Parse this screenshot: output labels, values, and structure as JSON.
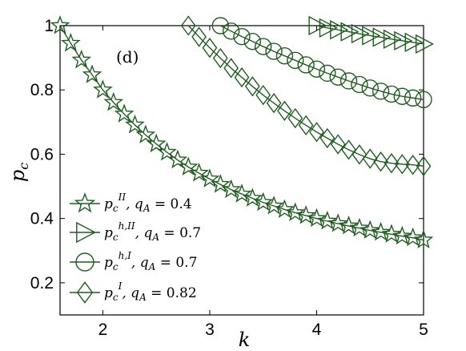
{
  "chart_data": {
    "type": "line",
    "panel_label": "(d)",
    "xlabel": "k",
    "ylabel": "p_c",
    "xlim": [
      1.6,
      5.0
    ],
    "ylim": [
      0.1,
      1.0
    ],
    "xticks": [
      2,
      3,
      4,
      5
    ],
    "yticks": [
      0.2,
      0.4,
      0.6,
      0.8,
      1.0
    ],
    "ytick_labels": [
      "0.2",
      "0.4",
      "0.6",
      "0.8",
      "1"
    ],
    "grid": false,
    "legend_position": "lower-left",
    "color": "#1f5c1f",
    "series": [
      {
        "name": "p_c^{II}, q_A = 0.4",
        "marker": "star",
        "x": [
          1.6,
          1.7,
          1.8,
          1.9,
          2.0,
          2.1,
          2.2,
          2.3,
          2.4,
          2.5,
          2.6,
          2.7,
          2.8,
          2.9,
          3.0,
          3.1,
          3.2,
          3.3,
          3.4,
          3.5,
          3.6,
          3.7,
          3.8,
          3.9,
          4.0,
          4.1,
          4.2,
          4.3,
          4.4,
          4.5,
          4.6,
          4.7,
          4.8,
          4.9,
          5.0
        ],
        "values": [
          1.0,
          0.945,
          0.893,
          0.847,
          0.8,
          0.761,
          0.725,
          0.691,
          0.66,
          0.632,
          0.606,
          0.582,
          0.56,
          0.541,
          0.523,
          0.506,
          0.49,
          0.476,
          0.463,
          0.45,
          0.439,
          0.428,
          0.418,
          0.409,
          0.4,
          0.392,
          0.384,
          0.377,
          0.37,
          0.363,
          0.357,
          0.351,
          0.345,
          0.34,
          0.333
        ]
      },
      {
        "name": "p_c^{h,II}, q_A = 0.7",
        "marker": "triangle-right",
        "x": [
          4.0,
          4.1,
          4.2,
          4.3,
          4.4,
          4.5,
          4.6,
          4.7,
          4.8,
          4.9,
          5.0
        ],
        "values": [
          1.0,
          0.993,
          0.987,
          0.981,
          0.975,
          0.969,
          0.964,
          0.958,
          0.953,
          0.948,
          0.943
        ]
      },
      {
        "name": "p_c^{h,I}, q_A = 0.7",
        "marker": "circle",
        "x": [
          3.1,
          3.2,
          3.3,
          3.4,
          3.5,
          3.6,
          3.7,
          3.8,
          3.9,
          4.0,
          4.1,
          4.2,
          4.3,
          4.4,
          4.5,
          4.6,
          4.7,
          4.8,
          4.9,
          5.0
        ],
        "values": [
          1.0,
          0.983,
          0.966,
          0.951,
          0.935,
          0.92,
          0.906,
          0.892,
          0.878,
          0.865,
          0.852,
          0.84,
          0.828,
          0.817,
          0.806,
          0.796,
          0.787,
          0.78,
          0.775,
          0.77
        ]
      },
      {
        "name": "p_c^{I}, q_A = 0.82",
        "marker": "diamond",
        "x": [
          2.8,
          2.9,
          3.0,
          3.1,
          3.2,
          3.3,
          3.4,
          3.5,
          3.6,
          3.7,
          3.8,
          3.9,
          4.0,
          4.1,
          4.2,
          4.3,
          4.4,
          4.5,
          4.6,
          4.7,
          4.8,
          4.9,
          5.0
        ],
        "values": [
          1.0,
          0.965,
          0.931,
          0.899,
          0.868,
          0.839,
          0.811,
          0.784,
          0.759,
          0.735,
          0.712,
          0.69,
          0.669,
          0.65,
          0.631,
          0.614,
          0.599,
          0.586,
          0.577,
          0.572,
          0.569,
          0.567,
          0.563
        ]
      }
    ],
    "legend": [
      {
        "label": "p_c^{II}, q_A = 0.4",
        "marker": "star"
      },
      {
        "label": "p_c^{h,II}, q_A = 0.7",
        "marker": "triangle-right"
      },
      {
        "label": "p_c^{h,I}, q_A = 0.7",
        "marker": "circle"
      },
      {
        "label": "p_c^{I}, q_A = 0.82",
        "marker": "diamond"
      }
    ]
  }
}
